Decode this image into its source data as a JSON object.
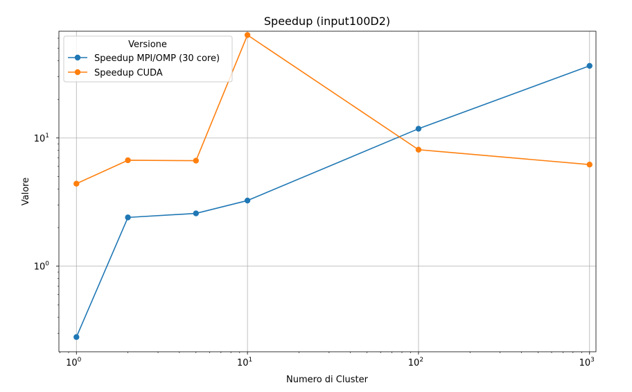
{
  "chart_data": {
    "type": "line",
    "title": "Speedup (input100D2)",
    "xlabel": "Numero di Cluster",
    "ylabel": "Valore",
    "xscale": "log",
    "yscale": "log",
    "xlim": [
      0.79,
      1090
    ],
    "ylim": [
      0.215,
      68
    ],
    "x": [
      1,
      2,
      5,
      10,
      100,
      1000
    ],
    "x_ticks": [
      {
        "value": 1,
        "base": "10",
        "exp": "0"
      },
      {
        "value": 10,
        "base": "10",
        "exp": "1"
      },
      {
        "value": 100,
        "base": "10",
        "exp": "2"
      },
      {
        "value": 1000,
        "base": "10",
        "exp": "3"
      }
    ],
    "y_ticks": [
      {
        "value": 1,
        "base": "10",
        "exp": "0"
      },
      {
        "value": 10,
        "base": "10",
        "exp": "1"
      }
    ],
    "grid": true,
    "legend": {
      "title": "Versione",
      "placement": "top-left"
    },
    "series": [
      {
        "name": "Speedup MPI/OMP (30 core)",
        "color": "#1f77b4",
        "values": [
          0.28,
          2.4,
          2.58,
          3.25,
          11.8,
          36.5
        ]
      },
      {
        "name": "Speedup CUDA",
        "color": "#ff7f0e",
        "values": [
          4.4,
          6.7,
          6.65,
          63.5,
          8.1,
          6.2
        ]
      }
    ]
  }
}
